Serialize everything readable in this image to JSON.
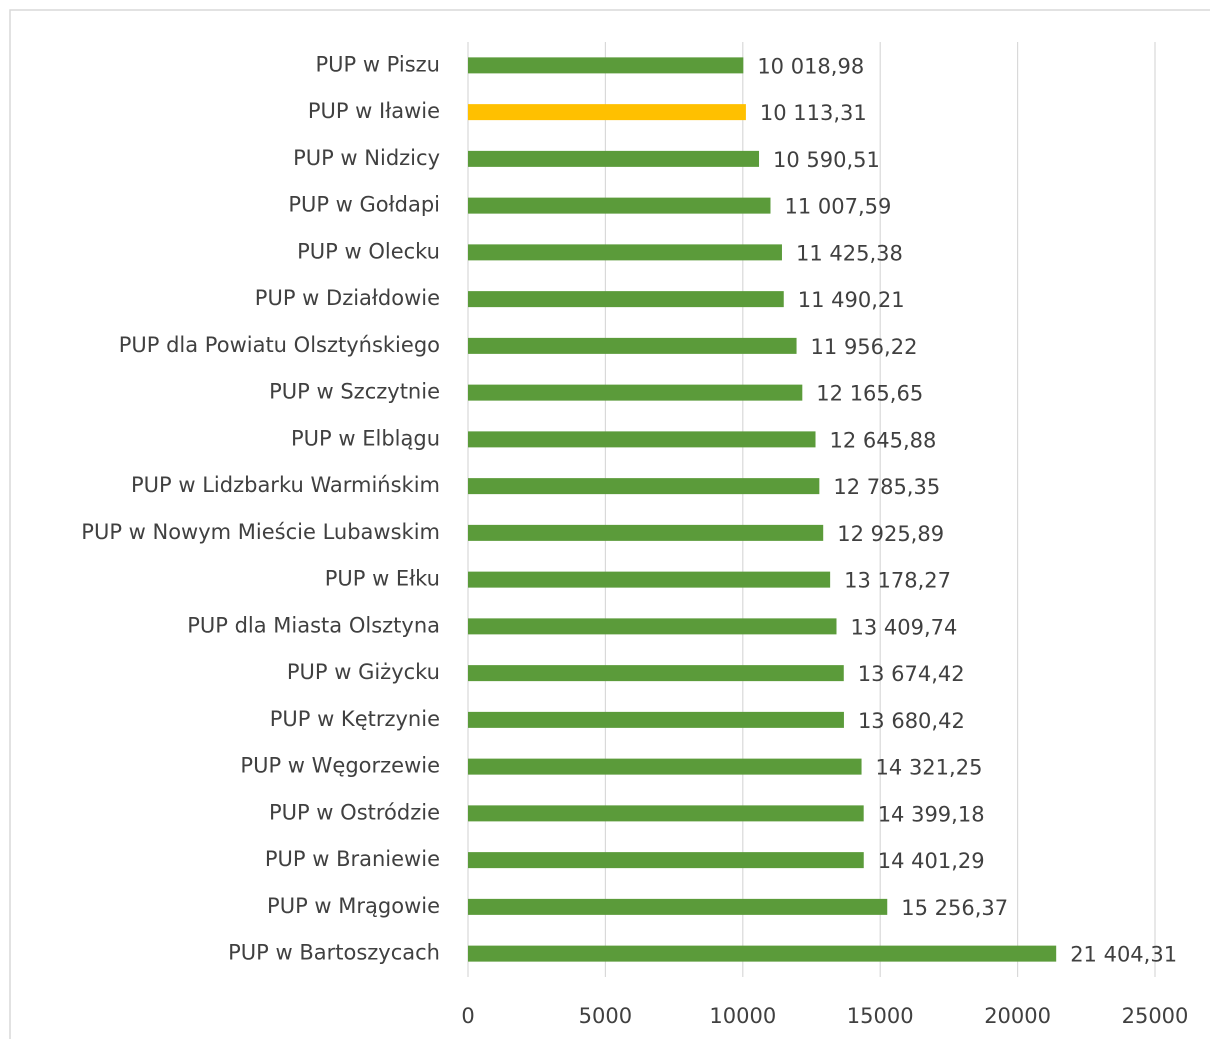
{
  "chart_data": {
    "type": "hbar",
    "categories": [
      "PUP w Piszu",
      "PUP w Iławie",
      "PUP w Nidzicy",
      "PUP w Gołdapi",
      "PUP w Olecku",
      "PUP w Działdowie",
      "PUP dla Powiatu Olsztyńskiego",
      "PUP w Szczytnie",
      "PUP w Elblągu",
      "PUP w Lidzbarku Warmińskim",
      "PUP w Nowym Mieście Lubawskim",
      "PUP w Ełku",
      "PUP dla Miasta Olsztyna",
      "PUP w Giżycku",
      "PUP w Kętrzynie",
      "PUP w Węgorzewie",
      "PUP w Ostródzie",
      "PUP w Braniewie",
      "PUP w Mrągowie",
      "PUP w Bartoszycach"
    ],
    "values": [
      10018.98,
      10113.31,
      10590.51,
      11007.59,
      11425.38,
      11490.21,
      11956.22,
      12165.65,
      12645.88,
      12785.35,
      12925.89,
      13178.27,
      13409.74,
      13674.42,
      13680.42,
      14321.25,
      14399.18,
      14401.29,
      15256.37,
      21404.31
    ],
    "value_labels": [
      "10 018,98",
      "10 113,31",
      "10 590,51",
      "11 007,59",
      "11 425,38",
      "11 490,21",
      "11 956,22",
      "12 165,65",
      "12 645,88",
      "12 785,35",
      "12 925,89",
      "13 178,27",
      "13 409,74",
      "13 674,42",
      "13 680,42",
      "14 321,25",
      "14 399,18",
      "14 401,29",
      "15 256,37",
      "21 404,31"
    ],
    "colors": [
      "#5b9b3a",
      "#ffc000",
      "#5b9b3a",
      "#5b9b3a",
      "#5b9b3a",
      "#5b9b3a",
      "#5b9b3a",
      "#5b9b3a",
      "#5b9b3a",
      "#5b9b3a",
      "#5b9b3a",
      "#5b9b3a",
      "#5b9b3a",
      "#5b9b3a",
      "#5b9b3a",
      "#5b9b3a",
      "#5b9b3a",
      "#5b9b3a",
      "#5b9b3a",
      "#5b9b3a"
    ],
    "xlim": [
      0,
      25000
    ],
    "xticks": [
      0,
      5000,
      10000,
      15000,
      20000,
      25000
    ],
    "grid": true
  }
}
